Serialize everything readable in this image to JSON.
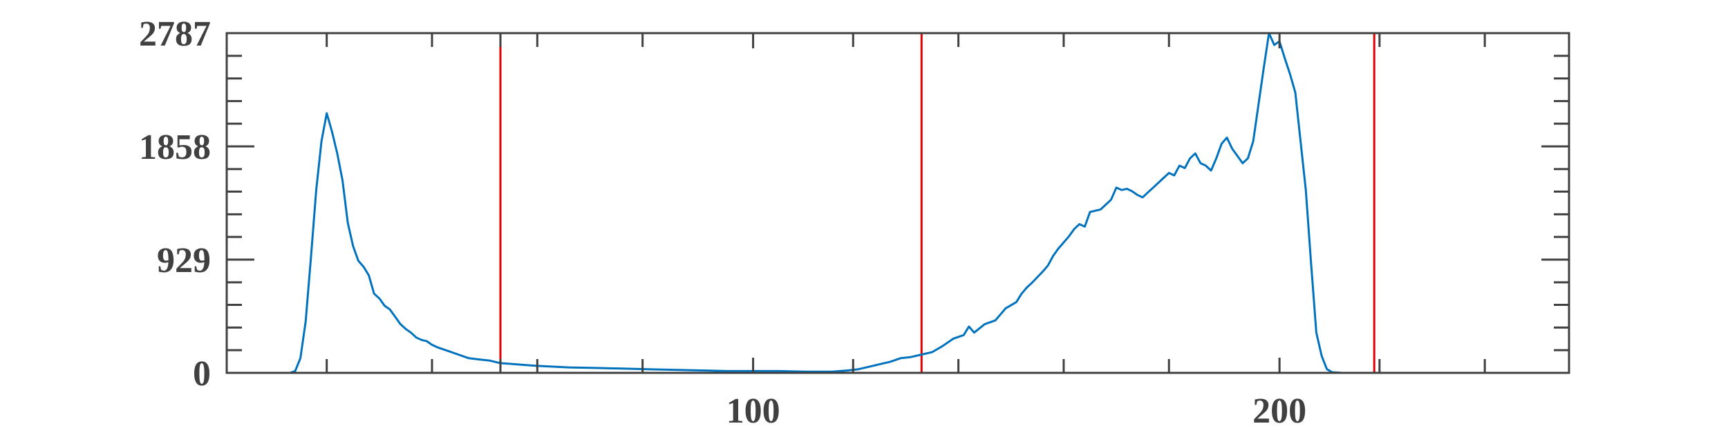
{
  "chart_data": {
    "type": "line",
    "title": "",
    "xlabel": "",
    "ylabel": "",
    "xlim": [
      0,
      255
    ],
    "ylim": [
      0,
      2787
    ],
    "grid": false,
    "legend": "none",
    "x_ticks": [
      100,
      200
    ],
    "x_tick_labels": [
      "100",
      "200"
    ],
    "x_minor_ticks": [
      19,
      39,
      52,
      59,
      79,
      119,
      139,
      159,
      179,
      219,
      239
    ],
    "y_ticks": [
      0,
      929,
      1858,
      2787
    ],
    "y_tick_labels": [
      "0",
      "929",
      "1858",
      "2787"
    ],
    "y_minor_ticks": [
      186,
      372,
      558,
      743,
      1115,
      1301,
      1487,
      1672,
      2044,
      2230,
      2415,
      2601
    ],
    "colors": {
      "line": "#0072BD",
      "threshold": "#E00000",
      "axis": "#404040"
    },
    "series": [
      {
        "color": "#0072BD",
        "x": [
          0,
          5,
          10,
          12,
          13,
          14,
          15,
          16,
          17,
          18,
          19,
          20,
          21,
          22,
          23,
          24,
          25,
          26,
          27,
          28,
          29,
          30,
          31,
          32,
          33,
          34,
          35,
          36,
          37,
          38,
          39,
          40,
          42,
          44,
          46,
          48,
          50,
          52,
          55,
          58,
          60,
          65,
          70,
          75,
          80,
          85,
          90,
          95,
          100,
          105,
          110,
          115,
          118,
          120,
          122,
          124,
          126,
          128,
          130,
          132,
          134,
          136,
          138,
          140,
          141,
          142,
          144,
          146,
          147,
          148,
          150,
          151,
          152,
          153,
          155,
          156,
          157,
          158,
          160,
          161,
          162,
          163,
          164,
          165,
          166,
          167,
          168,
          169,
          170,
          171,
          172,
          173,
          174,
          175,
          176,
          177,
          178,
          179,
          180,
          181,
          182,
          183,
          184,
          185,
          186,
          187,
          188,
          189,
          190,
          191,
          192,
          193,
          194,
          195,
          196,
          197,
          198,
          199,
          200,
          201,
          202,
          203,
          204,
          205,
          206,
          207,
          208,
          209,
          210,
          212,
          215,
          220,
          230,
          240,
          255
        ],
        "y": [
          0,
          0,
          0,
          0,
          15,
          120,
          420,
          950,
          1500,
          1900,
          2130,
          1980,
          1800,
          1580,
          1230,
          1040,
          920,
          870,
          800,
          650,
          610,
          550,
          520,
          460,
          400,
          360,
          330,
          290,
          270,
          260,
          230,
          210,
          180,
          150,
          120,
          110,
          100,
          80,
          70,
          60,
          55,
          45,
          40,
          35,
          30,
          25,
          20,
          15,
          15,
          15,
          10,
          10,
          20,
          30,
          50,
          70,
          90,
          120,
          130,
          150,
          170,
          220,
          280,
          310,
          380,
          330,
          400,
          430,
          480,
          530,
          580,
          650,
          700,
          740,
          830,
          880,
          960,
          1020,
          1120,
          1180,
          1220,
          1200,
          1320,
          1330,
          1340,
          1380,
          1420,
          1520,
          1500,
          1510,
          1490,
          1460,
          1440,
          1480,
          1520,
          1560,
          1600,
          1640,
          1620,
          1700,
          1680,
          1760,
          1800,
          1720,
          1700,
          1660,
          1760,
          1880,
          1930,
          1840,
          1780,
          1720,
          1760,
          1900,
          2200,
          2500,
          2787,
          2690,
          2720,
          2580,
          2450,
          2300,
          1900,
          1500,
          900,
          330,
          140,
          30,
          5,
          0,
          0,
          0,
          0,
          0,
          0
        ]
      }
    ],
    "vertical_lines": [
      {
        "x": 52,
        "color": "#E00000"
      },
      {
        "x": 132,
        "color": "#E00000"
      },
      {
        "x": 218,
        "color": "#E00000"
      }
    ]
  }
}
